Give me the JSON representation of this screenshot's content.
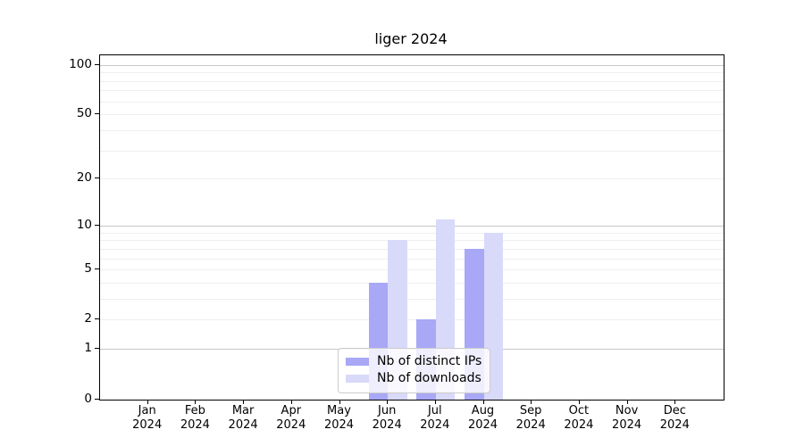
{
  "title": "liger 2024",
  "legend": {
    "items": [
      {
        "label": "Nb of distinct IPs",
        "color": "#a8a8f6"
      },
      {
        "label": "Nb of downloads",
        "color": "#d9d9fa"
      }
    ]
  },
  "chart_data": {
    "type": "bar",
    "title": "liger 2024",
    "categories": [
      "Jan",
      "Feb",
      "Mar",
      "Apr",
      "May",
      "Jun",
      "Jul",
      "Aug",
      "Sep",
      "Oct",
      "Nov",
      "Dec"
    ],
    "year": "2024",
    "series": [
      {
        "name": "Nb of distinct IPs",
        "color": "#a8a8f6",
        "values": [
          0,
          0,
          0,
          0,
          0,
          4,
          2,
          7,
          0,
          0,
          0,
          0
        ]
      },
      {
        "name": "Nb of downloads",
        "color": "#d9d9fa",
        "values": [
          0,
          0,
          0,
          0,
          0,
          8,
          11,
          9,
          0,
          0,
          0,
          0
        ]
      }
    ],
    "xlabel": "",
    "ylabel": "",
    "yscale": "log1p",
    "ylim": [
      0,
      114
    ],
    "yticks": [
      0,
      1,
      2,
      5,
      10,
      20,
      50,
      100
    ],
    "grid_major": [
      1,
      10,
      100
    ],
    "grid_minor": [
      2,
      3,
      4,
      5,
      6,
      7,
      8,
      9,
      20,
      30,
      40,
      50,
      60,
      70,
      80,
      90
    ],
    "grid": "on",
    "legend_position": "lower center"
  },
  "colors": {
    "grid_major": "#c7c7c9",
    "grid_minor": "#efefef",
    "axis": "#000000",
    "background": "#ffffff"
  }
}
